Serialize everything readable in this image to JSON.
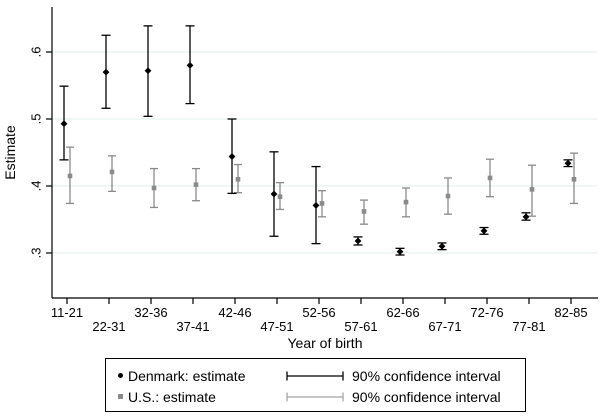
{
  "chart_data": {
    "type": "scatter",
    "title": "",
    "xlabel": "Year of birth",
    "ylabel": "Estimate",
    "categories": [
      "11-21",
      "22-31",
      "32-36",
      "37-41",
      "42-46",
      "47-51",
      "52-56",
      "57-61",
      "62-66",
      "67-71",
      "72-76",
      "77-81",
      "82-85"
    ],
    "y_ticks": [
      0.3,
      0.4,
      0.5,
      0.6
    ],
    "y_tick_labels": [
      ".3",
      ".4",
      ".5",
      ".6"
    ],
    "ylim": [
      0.24,
      0.665
    ],
    "grid": true,
    "series": [
      {
        "name": "Denmark: estimate",
        "marker": "diamond",
        "color": "#000000",
        "values": [
          0.493,
          0.57,
          0.572,
          0.58,
          0.444,
          0.388,
          0.371,
          0.318,
          0.302,
          0.31,
          0.333,
          0.354,
          0.434
        ],
        "ci_low": [
          0.439,
          0.516,
          0.504,
          0.523,
          0.389,
          0.325,
          0.314,
          0.312,
          0.297,
          0.305,
          0.328,
          0.349,
          0.429
        ],
        "ci_high": [
          0.549,
          0.625,
          0.639,
          0.639,
          0.5,
          0.451,
          0.429,
          0.324,
          0.307,
          0.315,
          0.338,
          0.36,
          0.439
        ],
        "ci_label": "90% confidence interval"
      },
      {
        "name": "U.S.: estimate",
        "marker": "square",
        "color": "#8a8a8a",
        "values": [
          0.415,
          0.421,
          0.397,
          0.402,
          0.41,
          0.384,
          0.374,
          0.362,
          0.376,
          0.385,
          0.412,
          0.395,
          0.41
        ],
        "ci_low": [
          0.374,
          0.392,
          0.368,
          0.378,
          0.39,
          0.365,
          0.354,
          0.343,
          0.354,
          0.358,
          0.384,
          0.355,
          0.374
        ],
        "ci_high": [
          0.458,
          0.445,
          0.426,
          0.426,
          0.432,
          0.405,
          0.393,
          0.379,
          0.397,
          0.412,
          0.44,
          0.431,
          0.449
        ],
        "ci_label": "90% confidence interval"
      }
    ],
    "legend": {
      "position": "bottom",
      "entries": [
        {
          "symbol": "dot",
          "color": "#000000",
          "label": "Denmark: estimate"
        },
        {
          "symbol": "errorbar",
          "color": "#000000",
          "label": "90% confidence interval"
        },
        {
          "symbol": "square",
          "color": "#8a8a8a",
          "label": "U.S.: estimate"
        },
        {
          "symbol": "errorbar",
          "color": "#a3a3a3",
          "label": "90% confidence interval"
        }
      ]
    }
  },
  "colors": {
    "background": "#ffffff",
    "axis": "#000000",
    "gridline": "#e1edeb",
    "denmark": "#000000",
    "us": "#8a8a8a"
  }
}
